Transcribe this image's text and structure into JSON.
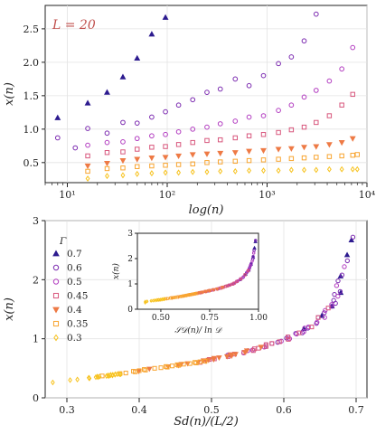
{
  "colors": {
    "0.7": "#2d1b8f",
    "0.6": "#7b2ab0",
    "0.5": "#b23cc0",
    "0.45": "#d8577d",
    "0.4": "#ee7a45",
    "0.35": "#f8a531",
    "0.3": "#f7c21d",
    "axis": "#222222",
    "annotation": "#c0504d"
  },
  "chart_data": [
    {
      "type": "scatter",
      "annotation": "L = 20",
      "xlabel": "log(n)",
      "ylabel": "x(n)",
      "xscale": "log",
      "xlim": [
        6,
        10000
      ],
      "ylim": [
        0.2,
        2.85
      ],
      "x_ticks": [
        10,
        100,
        1000,
        10000
      ],
      "x_tick_labels": [
        "10¹",
        "10²",
        "10³",
        "10⁴"
      ],
      "y_ticks": [
        0.5,
        1.0,
        1.5,
        2.0,
        2.5
      ],
      "y_tick_labels": [
        "0.5",
        "1.0",
        "1.5",
        "2.0",
        "2.5"
      ],
      "series": [
        {
          "gamma": "0.7",
          "marker": "triangle-up",
          "x": [
            8,
            16,
            25,
            36,
            50,
            70,
            96
          ],
          "y": [
            1.17,
            1.39,
            1.55,
            1.78,
            2.06,
            2.42,
            2.67
          ]
        },
        {
          "gamma": "0.6",
          "marker": "circle",
          "x": [
            8,
            12,
            16,
            25,
            36,
            50,
            70,
            96,
            130,
            180,
            250,
            340,
            480,
            660,
            920,
            1300,
            1750,
            2350,
            3100
          ],
          "y": [
            0.87,
            0.72,
            1.01,
            0.94,
            1.1,
            1.09,
            1.18,
            1.26,
            1.36,
            1.44,
            1.55,
            1.6,
            1.75,
            1.65,
            1.8,
            1.98,
            2.08,
            2.32,
            2.72
          ]
        },
        {
          "gamma": "0.5",
          "marker": "hexagon",
          "x": [
            16,
            25,
            36,
            50,
            70,
            96,
            130,
            180,
            250,
            340,
            480,
            660,
            920,
            1300,
            1750,
            2350,
            3100,
            4200,
            5600,
            7200
          ],
          "y": [
            0.76,
            0.8,
            0.81,
            0.86,
            0.9,
            0.92,
            0.96,
            1.0,
            1.03,
            1.08,
            1.12,
            1.18,
            1.2,
            1.28,
            1.36,
            1.48,
            1.58,
            1.72,
            1.9,
            2.22
          ]
        },
        {
          "gamma": "0.45",
          "marker": "square",
          "x": [
            16,
            25,
            36,
            50,
            70,
            96,
            130,
            180,
            250,
            340,
            480,
            660,
            920,
            1300,
            1750,
            2350,
            3100,
            4200,
            5600,
            7200
          ],
          "y": [
            0.6,
            0.65,
            0.66,
            0.7,
            0.73,
            0.74,
            0.77,
            0.8,
            0.83,
            0.84,
            0.87,
            0.9,
            0.92,
            0.95,
            0.99,
            1.03,
            1.1,
            1.2,
            1.36,
            1.52
          ]
        },
        {
          "gamma": "0.4",
          "marker": "triangle-down",
          "x": [
            16,
            25,
            36,
            50,
            70,
            96,
            130,
            180,
            250,
            340,
            480,
            660,
            920,
            1300,
            1750,
            2350,
            3100,
            4200,
            5600,
            7200
          ],
          "y": [
            0.45,
            0.49,
            0.53,
            0.55,
            0.57,
            0.58,
            0.6,
            0.62,
            0.63,
            0.64,
            0.65,
            0.67,
            0.68,
            0.7,
            0.71,
            0.73,
            0.74,
            0.77,
            0.8,
            0.86
          ]
        },
        {
          "gamma": "0.35",
          "marker": "square",
          "x": [
            16,
            25,
            36,
            50,
            70,
            96,
            130,
            180,
            250,
            340,
            480,
            660,
            920,
            1300,
            1750,
            2350,
            3100,
            4200,
            5600,
            7200,
            8000
          ],
          "y": [
            0.37,
            0.41,
            0.42,
            0.44,
            0.45,
            0.46,
            0.47,
            0.48,
            0.5,
            0.51,
            0.52,
            0.53,
            0.54,
            0.55,
            0.56,
            0.57,
            0.58,
            0.59,
            0.6,
            0.61,
            0.62
          ]
        },
        {
          "gamma": "0.3",
          "marker": "diamond",
          "x": [
            16,
            25,
            36,
            50,
            70,
            96,
            130,
            180,
            250,
            340,
            480,
            660,
            920,
            1300,
            1750,
            2350,
            3100,
            4200,
            5600,
            7200,
            8000
          ],
          "y": [
            0.26,
            0.3,
            0.31,
            0.33,
            0.34,
            0.35,
            0.35,
            0.36,
            0.36,
            0.37,
            0.37,
            0.38,
            0.38,
            0.38,
            0.39,
            0.39,
            0.39,
            0.4,
            0.4,
            0.4,
            0.4
          ]
        }
      ]
    },
    {
      "type": "scatter",
      "xlabel": "𝒮ₐ(n)/(L/2)",
      "xlabel_text": "Sd(n)/(L/2)",
      "ylabel": "x(n)",
      "xlim": [
        0.27,
        0.715
      ],
      "ylim": [
        0,
        3
      ],
      "x_ticks": [
        0.3,
        0.4,
        0.5,
        0.6,
        0.7
      ],
      "x_tick_labels": [
        "0.3",
        "0.4",
        "0.5",
        "0.6",
        "0.7"
      ],
      "y_ticks": [
        0,
        1,
        2,
        3
      ],
      "y_tick_labels": [
        "0",
        "1",
        "2",
        "3"
      ],
      "legend": {
        "title": "Γ",
        "placement": "top-left",
        "entries": [
          "0.7",
          "0.6",
          "0.5",
          "0.45",
          "0.4",
          "0.35",
          "0.3"
        ]
      },
      "collapse_curve": {
        "x": [
          0.285,
          0.32,
          0.36,
          0.4,
          0.44,
          0.48,
          0.52,
          0.56,
          0.6,
          0.63,
          0.65,
          0.665,
          0.675,
          0.685,
          0.692
        ],
        "y": [
          0.27,
          0.32,
          0.38,
          0.46,
          0.53,
          0.6,
          0.7,
          0.82,
          0.98,
          1.15,
          1.33,
          1.55,
          1.8,
          2.2,
          2.8
        ]
      }
    },
    {
      "type": "scatter",
      "role": "inset",
      "xlabel": "𝒮𝒟(n)/ ln 𝒟",
      "ylabel": "x(n)",
      "xlim": [
        0.38,
        1.0
      ],
      "ylim": [
        0,
        3
      ],
      "x_ticks": [
        0.5,
        0.75,
        1.0
      ],
      "x_tick_labels": [
        "0.50",
        "0.75",
        "1.00"
      ],
      "y_ticks": [
        0,
        1,
        2,
        3
      ],
      "y_tick_labels": [
        "0",
        "1",
        "2",
        "3"
      ],
      "collapse_curve": {
        "x": [
          0.42,
          0.5,
          0.6,
          0.7,
          0.8,
          0.87,
          0.92,
          0.95,
          0.97,
          0.985
        ],
        "y": [
          0.3,
          0.38,
          0.5,
          0.65,
          0.82,
          1.0,
          1.25,
          1.55,
          1.95,
          2.7
        ]
      }
    }
  ]
}
